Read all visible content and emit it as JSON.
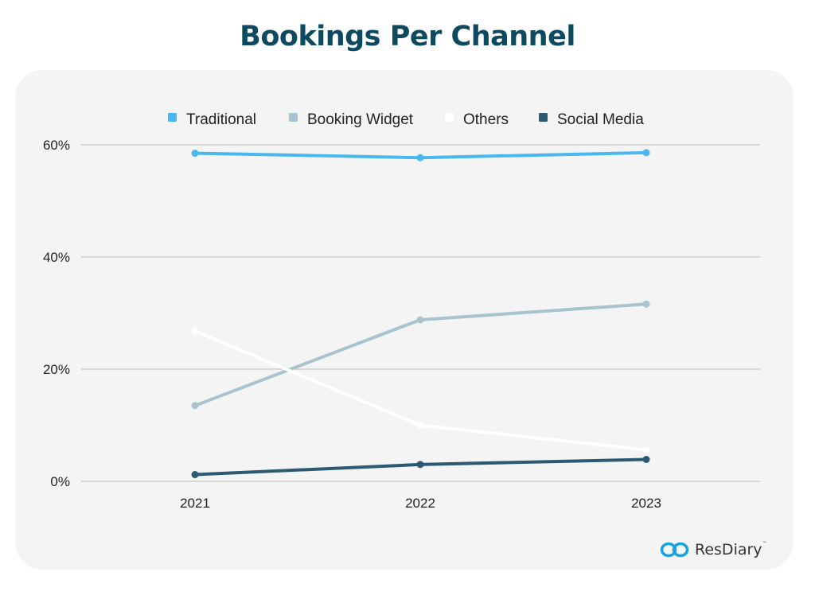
{
  "title": "Bookings Per Channel",
  "brand": {
    "name": "ResDiary",
    "trademark": "™",
    "icon": "resdiary-logo-icon",
    "color": "#1ba3e0"
  },
  "colors": {
    "title": "#0d4a5f",
    "card_bg": "#f4f4f4",
    "grid": "#bdbdbd",
    "text": "#222222"
  },
  "chart_data": {
    "type": "line",
    "title": "Bookings Per Channel",
    "xlabel": "",
    "ylabel": "",
    "categories": [
      "2021",
      "2022",
      "2023"
    ],
    "ylim": [
      0,
      60
    ],
    "yticks": [
      0,
      20,
      40,
      60
    ],
    "ytick_labels": [
      "0%",
      "20%",
      "40%",
      "60%"
    ],
    "grid": true,
    "legend_position": "top",
    "series": [
      {
        "name": "Traditional",
        "color": "#4ab8f0",
        "values": [
          58.5,
          57.7,
          58.6
        ]
      },
      {
        "name": "Booking Widget",
        "color": "#a9c4cf",
        "values": [
          13.5,
          28.8,
          31.6
        ]
      },
      {
        "name": "Others",
        "color": "#ffffff",
        "values": [
          26.8,
          10.0,
          5.6
        ]
      },
      {
        "name": "Social Media",
        "color": "#2c5a73",
        "values": [
          1.2,
          3.0,
          3.9
        ]
      }
    ]
  }
}
